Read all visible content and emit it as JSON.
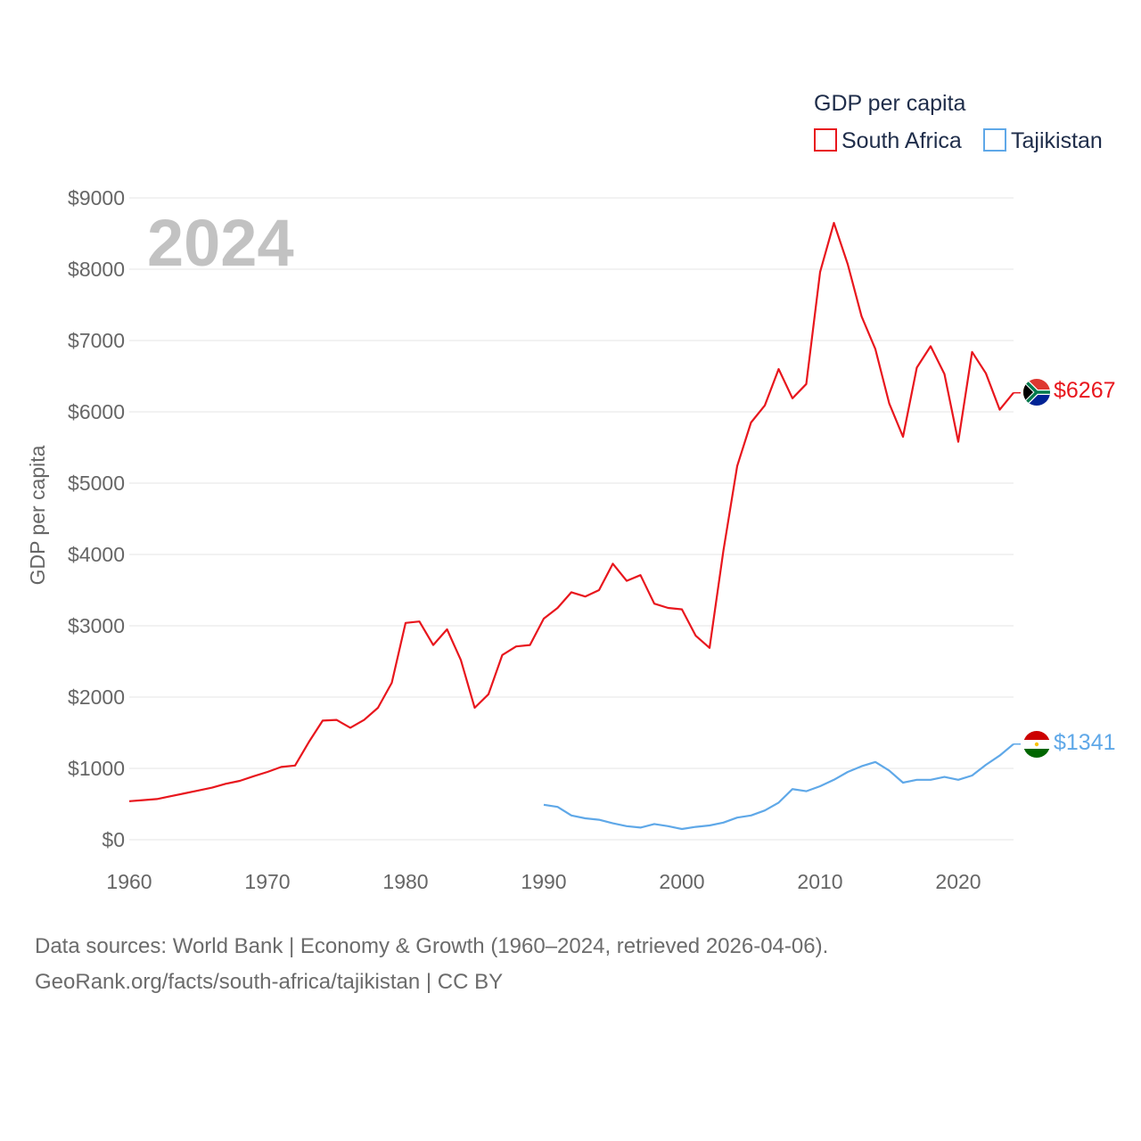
{
  "chart_data": {
    "type": "line",
    "title": "GDP per capita",
    "ylabel": "GDP per capita",
    "xlabel": "",
    "year_label": "2024",
    "xlim": [
      1960,
      2024
    ],
    "ylim": [
      0,
      9000
    ],
    "x_ticks": [
      "1960",
      "1970",
      "1980",
      "1990",
      "2000",
      "2010",
      "2020"
    ],
    "y_ticks": [
      "$0",
      "$1000",
      "$2000",
      "$3000",
      "$4000",
      "$5000",
      "$6000",
      "$7000",
      "$8000",
      "$9000"
    ],
    "grid": true,
    "legend_position": "top-right",
    "series": [
      {
        "name": "South Africa",
        "color": "#e8161d",
        "end_label": "$6267",
        "flag": "south-africa-flag-icon",
        "x": [
          1960,
          1961,
          1962,
          1963,
          1964,
          1965,
          1966,
          1967,
          1968,
          1969,
          1970,
          1971,
          1972,
          1973,
          1974,
          1975,
          1976,
          1977,
          1978,
          1979,
          1980,
          1981,
          1982,
          1983,
          1984,
          1985,
          1986,
          1987,
          1988,
          1989,
          1990,
          1991,
          1992,
          1993,
          1994,
          1995,
          1996,
          1997,
          1998,
          1999,
          2000,
          2001,
          2002,
          2003,
          2004,
          2005,
          2006,
          2007,
          2008,
          2009,
          2010,
          2011,
          2012,
          2013,
          2014,
          2015,
          2016,
          2017,
          2018,
          2019,
          2020,
          2021,
          2022,
          2023,
          2024
        ],
        "values": [
          540,
          555,
          570,
          610,
          650,
          690,
          730,
          785,
          825,
          890,
          950,
          1020,
          1040,
          1370,
          1670,
          1680,
          1570,
          1680,
          1850,
          2200,
          3040,
          3060,
          2730,
          2950,
          2520,
          1850,
          2040,
          2590,
          2710,
          2730,
          3100,
          3250,
          3470,
          3410,
          3500,
          3870,
          3630,
          3710,
          3310,
          3250,
          3230,
          2860,
          2690,
          4050,
          5240,
          5850,
          6090,
          6600,
          6190,
          6390,
          7960,
          8650,
          8070,
          7340,
          6880,
          6120,
          5650,
          6620,
          6920,
          6530,
          5580,
          6840,
          6540,
          6030,
          6267
        ]
      },
      {
        "name": "Tajikistan",
        "color": "#5fa8e8",
        "end_label": "$1341",
        "flag": "tajikistan-flag-icon",
        "x": [
          1990,
          1991,
          1992,
          1993,
          1994,
          1995,
          1996,
          1997,
          1998,
          1999,
          2000,
          2001,
          2002,
          2003,
          2004,
          2005,
          2006,
          2007,
          2008,
          2009,
          2010,
          2011,
          2012,
          2013,
          2014,
          2015,
          2016,
          2017,
          2018,
          2019,
          2020,
          2021,
          2022,
          2023,
          2024
        ],
        "values": [
          490,
          460,
          340,
          300,
          280,
          230,
          190,
          170,
          220,
          190,
          150,
          180,
          200,
          240,
          310,
          340,
          410,
          520,
          710,
          680,
          750,
          840,
          950,
          1030,
          1090,
          970,
          800,
          840,
          840,
          880,
          840,
          900,
          1050,
          1180,
          1341
        ]
      }
    ]
  },
  "footer": {
    "line1": "Data sources: World Bank | Economy & Growth (1960–2024, retrieved 2026-04-06).",
    "line2": "GeoRank.org/facts/south-africa/tajikistan | CC BY"
  }
}
